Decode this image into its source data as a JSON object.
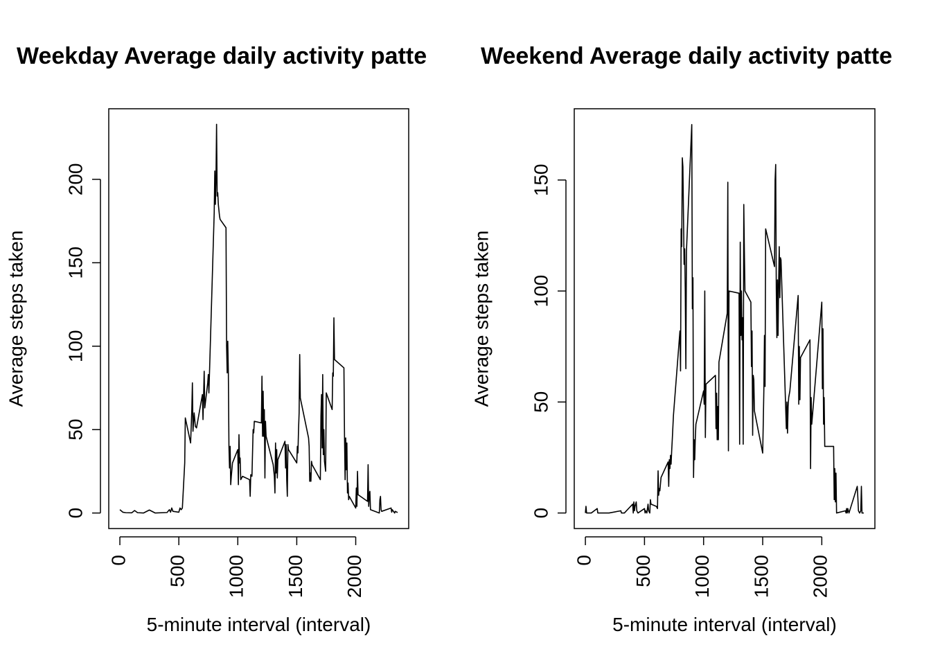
{
  "chart_data": [
    {
      "type": "line",
      "title": "Weekday Average daily activity patte",
      "xlabel": "5-minute interval (interval)",
      "ylabel": "Average steps taken",
      "color": "#000000",
      "xlim": [
        -94.2,
        2449.2
      ],
      "ylim": [
        -9.3,
        242.3
      ],
      "xticks": [
        0,
        500,
        1000,
        1500,
        2000
      ],
      "yticks": [
        0,
        50,
        100,
        150,
        200
      ],
      "x": [
        0,
        25,
        50,
        100,
        125,
        150,
        200,
        250,
        300,
        400,
        420,
        430,
        440,
        450,
        500,
        510,
        520,
        530,
        550,
        555,
        600,
        610,
        615,
        620,
        630,
        640,
        650,
        700,
        705,
        715,
        720,
        730,
        745,
        750,
        755,
        800,
        805,
        810,
        815,
        820,
        825,
        830,
        835,
        845,
        850,
        900,
        905,
        910,
        915,
        920,
        925,
        930,
        935,
        940,
        945,
        955,
        1000,
        1005,
        1010,
        1015,
        1020,
        1025,
        1040,
        1100,
        1105,
        1110,
        1120,
        1130,
        1135,
        1140,
        1200,
        1205,
        1210,
        1215,
        1220,
        1225,
        1230,
        1235,
        1240,
        1300,
        1310,
        1315,
        1320,
        1325,
        1330,
        1335,
        1340,
        1400,
        1405,
        1410,
        1415,
        1420,
        1425,
        1430,
        1500,
        1505,
        1510,
        1515,
        1520,
        1525,
        1530,
        1600,
        1605,
        1610,
        1615,
        1620,
        1625,
        1630,
        1700,
        1705,
        1710,
        1715,
        1720,
        1725,
        1730,
        1735,
        1745,
        1750,
        1800,
        1805,
        1810,
        1815,
        1820,
        1900,
        1905,
        1910,
        1915,
        1920,
        1925,
        1930,
        1935,
        1940,
        1945,
        2000,
        2005,
        2010,
        2015,
        2020,
        2100,
        2105,
        2110,
        2115,
        2120,
        2125,
        2200,
        2205,
        2210,
        2215,
        2220,
        2300,
        2305,
        2310,
        2320,
        2330,
        2335,
        2355
      ],
      "y": [
        2,
        0.5,
        0.2,
        0.1,
        1.5,
        0.2,
        0,
        1.8,
        0,
        0.3,
        2,
        0.5,
        3,
        1,
        0.5,
        3,
        2,
        3,
        30,
        57,
        42,
        62,
        78,
        49,
        60,
        52,
        51,
        71,
        56,
        85,
        63,
        69,
        78,
        83,
        72,
        180,
        205,
        185,
        200,
        233,
        190,
        192,
        185,
        178,
        176,
        171,
        100,
        84,
        103,
        84,
        40,
        27,
        40,
        17,
        22,
        30,
        38,
        17,
        47,
        30,
        33,
        20,
        22,
        20,
        10,
        23,
        22,
        50,
        48,
        55,
        54,
        82,
        46,
        73,
        46,
        62,
        21,
        55,
        46,
        29,
        22,
        12,
        42,
        24,
        38,
        21,
        32,
        43,
        27,
        41,
        20,
        10,
        41,
        38,
        30,
        40,
        36,
        50,
        60,
        95,
        69,
        45,
        40,
        19,
        24,
        19,
        31,
        29,
        20,
        58,
        71,
        39,
        83,
        35,
        50,
        31,
        25,
        72,
        62,
        84,
        82,
        117,
        92,
        87,
        46,
        20,
        45,
        26,
        42,
        12,
        18,
        8,
        10,
        3,
        15,
        4,
        25,
        11,
        7,
        29,
        4,
        11,
        13,
        2,
        0,
        8,
        10,
        2,
        1,
        3,
        0.5,
        2,
        1,
        0,
        1,
        0.3
      ]
    },
    {
      "type": "line",
      "title": "Weekend Average daily activity patte",
      "xlabel": "5-minute interval (interval)",
      "ylabel": "Average steps taken",
      "color": "#000000",
      "xlim": [
        -94.2,
        2449.2
      ],
      "ylim": [
        -7.0,
        182.1
      ],
      "xticks": [
        0,
        500,
        1000,
        1500,
        2000
      ],
      "yticks": [
        0,
        50,
        100,
        150
      ],
      "x": [
        0,
        5,
        10,
        50,
        100,
        105,
        200,
        300,
        305,
        330,
        400,
        405,
        410,
        415,
        420,
        430,
        435,
        445,
        500,
        505,
        510,
        520,
        530,
        535,
        545,
        550,
        555,
        600,
        610,
        615,
        620,
        625,
        630,
        640,
        700,
        705,
        710,
        715,
        720,
        725,
        730,
        735,
        745,
        800,
        805,
        810,
        815,
        820,
        825,
        830,
        835,
        840,
        845,
        850,
        855,
        900,
        905,
        910,
        915,
        920,
        925,
        930,
        935,
        1000,
        1005,
        1010,
        1015,
        1020,
        1100,
        1105,
        1110,
        1115,
        1120,
        1125,
        1130,
        1200,
        1205,
        1210,
        1215,
        1300,
        1305,
        1310,
        1315,
        1320,
        1325,
        1330,
        1335,
        1340,
        1345,
        1350,
        1400,
        1405,
        1410,
        1415,
        1420,
        1425,
        1430,
        1500,
        1505,
        1510,
        1515,
        1520,
        1525,
        1600,
        1605,
        1610,
        1615,
        1620,
        1625,
        1630,
        1635,
        1640,
        1645,
        1650,
        1655,
        1700,
        1705,
        1710,
        1715,
        1720,
        1730,
        1800,
        1805,
        1810,
        1815,
        1820,
        1900,
        1905,
        1910,
        1915,
        2000,
        2005,
        2010,
        2015,
        2020,
        2025,
        2100,
        2105,
        2110,
        2115,
        2120,
        2125,
        2200,
        2205,
        2210,
        2215,
        2220,
        2230,
        2300,
        2305,
        2310,
        2320,
        2330,
        2335,
        2340,
        2355
      ],
      "y": [
        0,
        3,
        0,
        0,
        2,
        0,
        0,
        1,
        0,
        0,
        4,
        0,
        5,
        1,
        3,
        5,
        1,
        0,
        2,
        0,
        1,
        0,
        4,
        1,
        0,
        6,
        4,
        3,
        2,
        19,
        8,
        11,
        10,
        16,
        23,
        12,
        24,
        20,
        26,
        22,
        28,
        33,
        44,
        82,
        64,
        128,
        120,
        160,
        156,
        134,
        112,
        119,
        100,
        65,
        118,
        175,
        92,
        106,
        16,
        33,
        24,
        34,
        40,
        55,
        49,
        100,
        34,
        58,
        62,
        38,
        54,
        33,
        48,
        33,
        68,
        90,
        149,
        28,
        100,
        99,
        31,
        122,
        80,
        100,
        78,
        88,
        31,
        139,
        118,
        100,
        95,
        66,
        82,
        35,
        62,
        60,
        46,
        27,
        41,
        56,
        80,
        57,
        128,
        111,
        150,
        157,
        101,
        79,
        105,
        80,
        104,
        120,
        97,
        115,
        114,
        38,
        50,
        36,
        48,
        52,
        55,
        98,
        49,
        75,
        51,
        70,
        78,
        20,
        52,
        40,
        95,
        56,
        83,
        40,
        52,
        30,
        30,
        6,
        20,
        5,
        18,
        0,
        1,
        0,
        2,
        0,
        2,
        0,
        12,
        7,
        1,
        0,
        1,
        12,
        0,
        0
      ]
    }
  ]
}
